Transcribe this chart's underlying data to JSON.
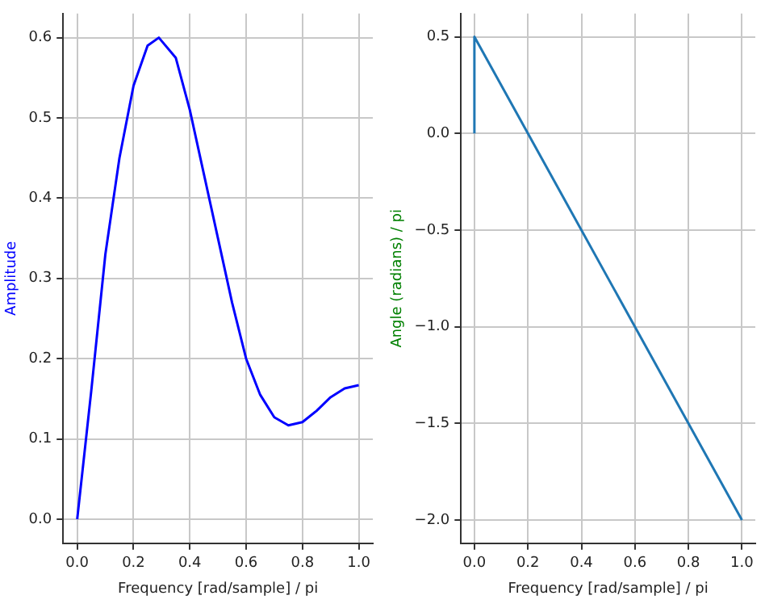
{
  "chart_data": [
    {
      "type": "line",
      "xlabel": "Frequency [rad/sample] / pi",
      "ylabel": "Amplitude",
      "grid": true,
      "legend": false,
      "marker": "none",
      "line_style": "solid",
      "xlim": [
        -0.05,
        1.05
      ],
      "ylim": [
        -0.03,
        0.63
      ],
      "xticks": [
        {
          "value": 0,
          "label": "0.0"
        },
        {
          "value": 0.2,
          "label": "0.2"
        },
        {
          "value": 0.4,
          "label": "0.4"
        },
        {
          "value": 0.6,
          "label": "0.6"
        },
        {
          "value": 0.8,
          "label": "0.8"
        },
        {
          "value": 1,
          "label": "1.0"
        }
      ],
      "yticks": [
        {
          "value": 0,
          "label": "0.0"
        },
        {
          "value": 0.1,
          "label": "0.1"
        },
        {
          "value": 0.2,
          "label": "0.2"
        },
        {
          "value": 0.3,
          "label": "0.3"
        },
        {
          "value": 0.4,
          "label": "0.4"
        },
        {
          "value": 0.5,
          "label": "0.5"
        },
        {
          "value": 0.6,
          "label": "0.6"
        }
      ],
      "series": [
        {
          "color": "#0000ff",
          "x": [
            0,
            0.05,
            0.1,
            0.15,
            0.2,
            0.25,
            0.29,
            0.35,
            0.4,
            0.45,
            0.5,
            0.55,
            0.6,
            0.65,
            0.7,
            0.75,
            0.8,
            0.85,
            0.9,
            0.95,
            1
          ],
          "values": [
            0,
            0.16,
            0.33,
            0.45,
            0.54,
            0.59,
            0.6,
            0.575,
            0.51,
            0.43,
            0.35,
            0.27,
            0.2,
            0.155,
            0.127,
            0.117,
            0.121,
            0.135,
            0.152,
            0.163,
            0.167
          ]
        }
      ]
    },
    {
      "type": "line",
      "xlabel": "Frequency [rad/sample] / pi",
      "ylabel": "Angle (radians) / pi",
      "grid": true,
      "legend": false,
      "marker": "none",
      "line_style": "solid",
      "xlim": [
        -0.05,
        1.05
      ],
      "ylim": [
        -2.12,
        0.62
      ],
      "xticks": [
        {
          "value": 0,
          "label": "0.0"
        },
        {
          "value": 0.2,
          "label": "0.2"
        },
        {
          "value": 0.4,
          "label": "0.4"
        },
        {
          "value": 0.6,
          "label": "0.6"
        },
        {
          "value": 0.8,
          "label": "0.8"
        },
        {
          "value": 1,
          "label": "1.0"
        }
      ],
      "yticks": [
        {
          "value": -2,
          "label": "−2.0"
        },
        {
          "value": -1.5,
          "label": "−1.5"
        },
        {
          "value": -1,
          "label": "−1.0"
        },
        {
          "value": -0.5,
          "label": "−0.5"
        },
        {
          "value": 0,
          "label": "0.0"
        },
        {
          "value": 0.5,
          "label": "0.5"
        }
      ],
      "series": [
        {
          "color": "#1f77b4",
          "x": [
            0,
            0,
            1
          ],
          "values": [
            0,
            0.5,
            -2
          ]
        }
      ]
    }
  ]
}
